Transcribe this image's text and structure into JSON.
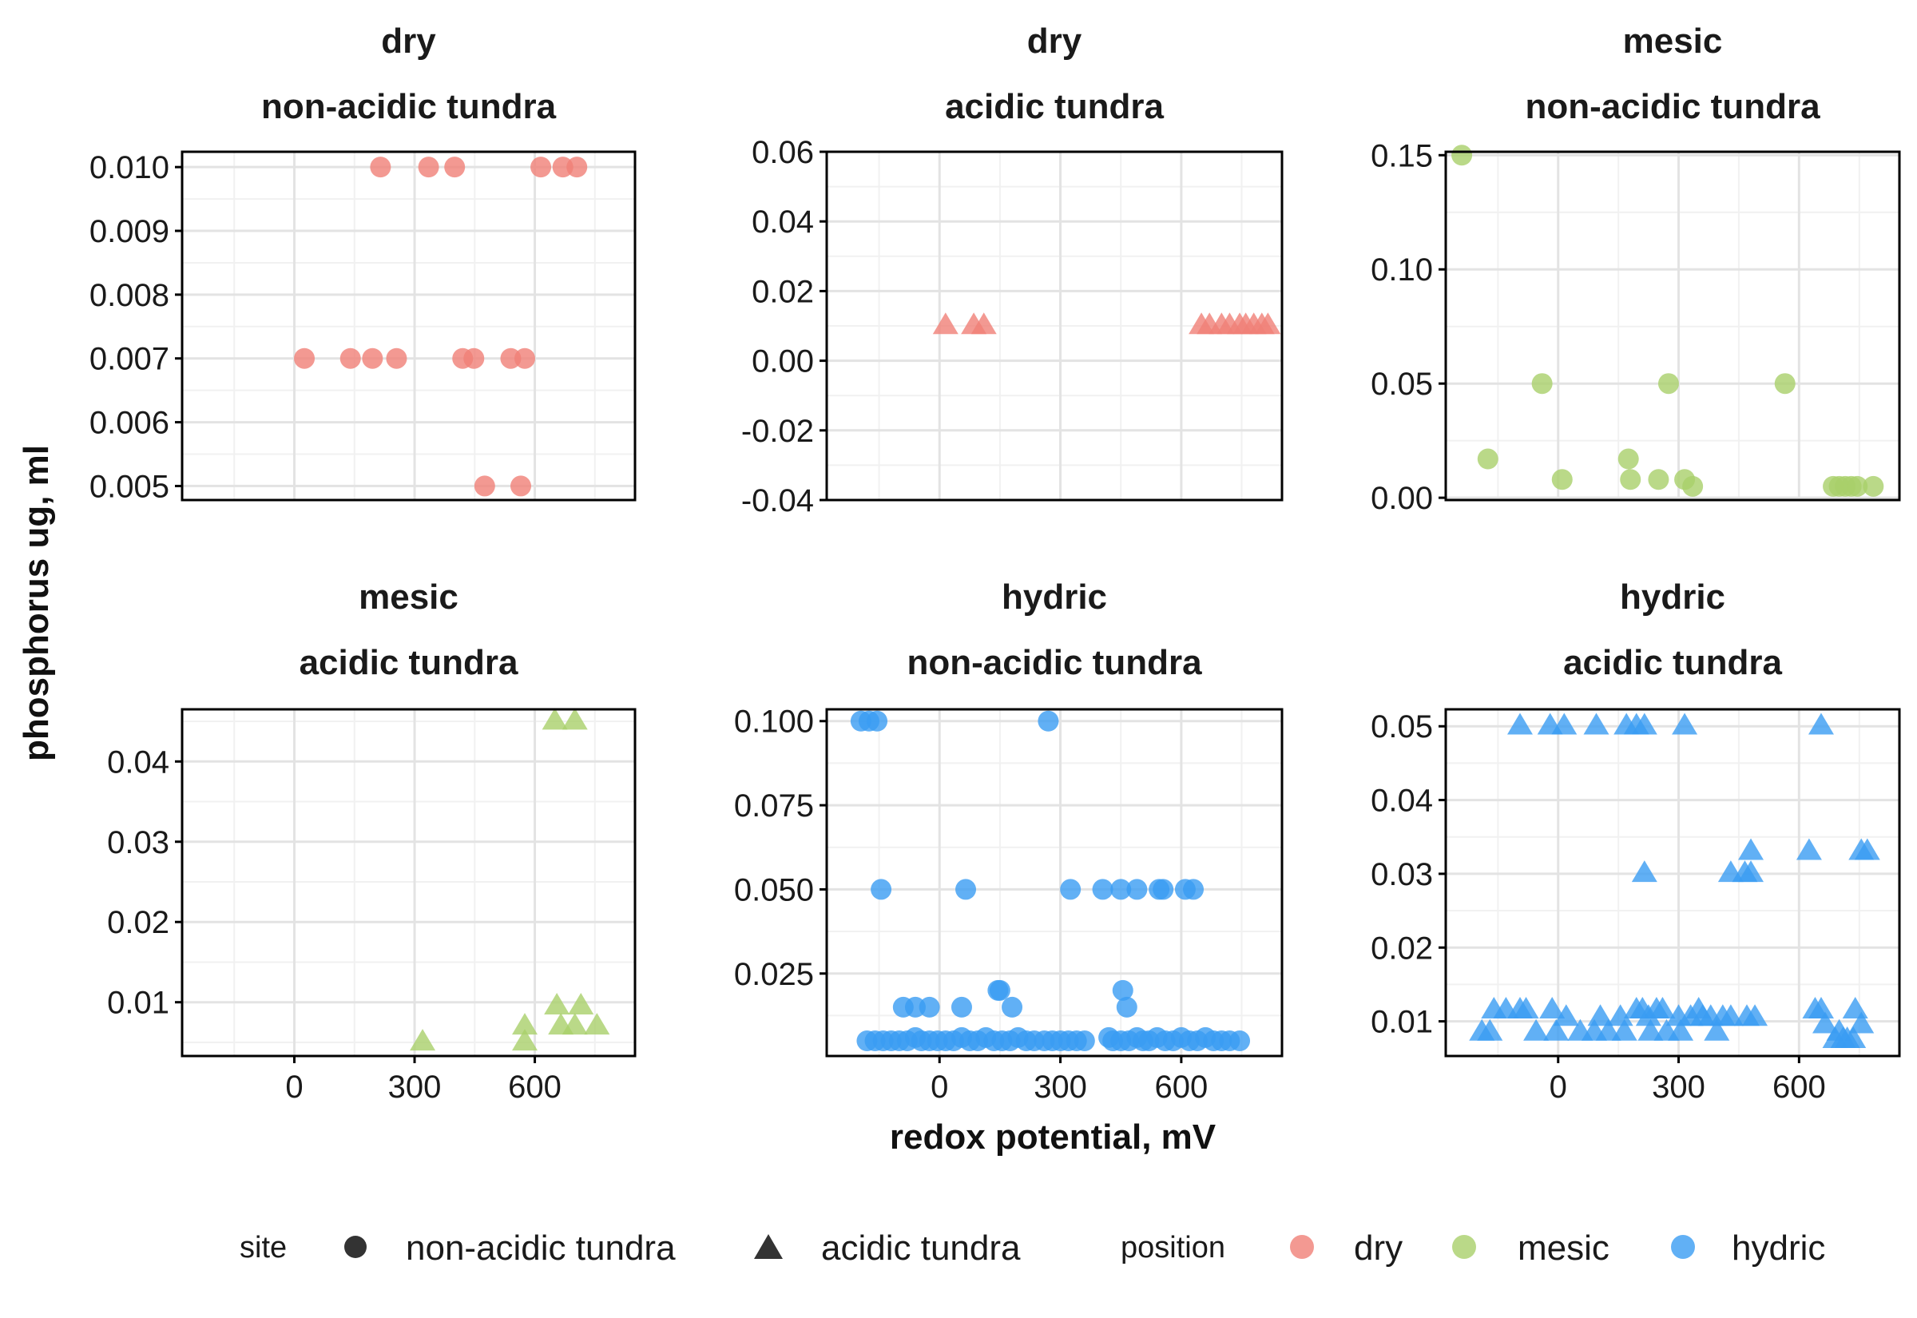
{
  "colors": {
    "dry": "#F07F77",
    "mesic": "#A9D06A",
    "hydric": "#3A9CF2",
    "legend_shape": "#333333"
  },
  "axes": {
    "xlabel": "redox potential, mV",
    "ylabel": "phosphorus ug, ml"
  },
  "legend": {
    "site_title": "site",
    "site_items": [
      {
        "label": "non-acidic tundra",
        "shape": "circle"
      },
      {
        "label": "acidic tundra",
        "shape": "triangle"
      }
    ],
    "position_title": "position",
    "position_items": [
      {
        "label": "dry",
        "color": "dry"
      },
      {
        "label": "mesic",
        "color": "mesic"
      },
      {
        "label": "hydric",
        "color": "hydric"
      }
    ]
  },
  "chart_data": [
    {
      "type": "scatter",
      "strip_top": "dry",
      "strip_bottom": "non-acidic tundra",
      "shape": "circle",
      "color": "dry",
      "xlim": [
        -280,
        850
      ],
      "x_ticks": [],
      "x_tick_labels": [],
      "ylim": [
        0.00478,
        0.01024
      ],
      "y_ticks": [
        0.005,
        0.006,
        0.007,
        0.008,
        0.009,
        0.01
      ],
      "y_tick_labels": [
        "0.005",
        "0.006",
        "0.007",
        "0.008",
        "0.009",
        "0.010"
      ],
      "points": [
        [
          215,
          0.01
        ],
        [
          335,
          0.01
        ],
        [
          400,
          0.01
        ],
        [
          615,
          0.01
        ],
        [
          670,
          0.01
        ],
        [
          705,
          0.01
        ],
        [
          25,
          0.007
        ],
        [
          140,
          0.007
        ],
        [
          195,
          0.007
        ],
        [
          255,
          0.007
        ],
        [
          420,
          0.007
        ],
        [
          448,
          0.007
        ],
        [
          540,
          0.007
        ],
        [
          575,
          0.007
        ],
        [
          475,
          0.005
        ],
        [
          565,
          0.005
        ]
      ]
    },
    {
      "type": "scatter",
      "strip_top": "dry",
      "strip_bottom": "acidic tundra",
      "shape": "triangle",
      "color": "dry",
      "xlim": [
        -280,
        850
      ],
      "x_ticks": [],
      "x_tick_labels": [],
      "ylim": [
        -0.04,
        0.06
      ],
      "y_ticks": [
        -0.04,
        -0.02,
        0.0,
        0.02,
        0.04,
        0.06
      ],
      "y_tick_labels": [
        "-0.04",
        "-0.02",
        "0.00",
        "0.02",
        "0.04",
        "0.06"
      ],
      "points": [
        [
          15,
          0.01
        ],
        [
          85,
          0.01
        ],
        [
          110,
          0.01
        ],
        [
          650,
          0.01
        ],
        [
          670,
          0.01
        ],
        [
          700,
          0.01
        ],
        [
          720,
          0.01
        ],
        [
          745,
          0.01
        ],
        [
          760,
          0.01
        ],
        [
          780,
          0.01
        ],
        [
          800,
          0.01
        ],
        [
          815,
          0.01
        ]
      ]
    },
    {
      "type": "scatter",
      "strip_top": "mesic",
      "strip_bottom": "non-acidic tundra",
      "shape": "circle",
      "color": "mesic",
      "xlim": [
        -280,
        850
      ],
      "x_ticks": [],
      "x_tick_labels": [],
      "ylim": [
        -0.001,
        0.1515
      ],
      "y_ticks": [
        0.0,
        0.05,
        0.1,
        0.15
      ],
      "y_tick_labels": [
        "0.00",
        "0.05",
        "0.10",
        "0.15"
      ],
      "points": [
        [
          -240,
          0.15
        ],
        [
          -175,
          0.017
        ],
        [
          -40,
          0.05
        ],
        [
          10,
          0.008
        ],
        [
          175,
          0.017
        ],
        [
          180,
          0.008
        ],
        [
          250,
          0.008
        ],
        [
          275,
          0.05
        ],
        [
          315,
          0.008
        ],
        [
          335,
          0.005
        ],
        [
          565,
          0.05
        ],
        [
          685,
          0.005
        ],
        [
          700,
          0.005
        ],
        [
          715,
          0.005
        ],
        [
          730,
          0.005
        ],
        [
          745,
          0.005
        ],
        [
          785,
          0.005
        ]
      ]
    },
    {
      "type": "scatter",
      "strip_top": "mesic",
      "strip_bottom": "acidic tundra",
      "shape": "triangle",
      "color": "mesic",
      "xlim": [
        -280,
        850
      ],
      "x_ticks": [
        0,
        300,
        600
      ],
      "x_tick_labels": [
        "0",
        "300",
        "600"
      ],
      "ylim": [
        0.0033,
        0.0465
      ],
      "y_ticks": [
        0.01,
        0.02,
        0.03,
        0.04
      ],
      "y_tick_labels": [
        "0.01",
        "0.02",
        "0.03",
        "0.04"
      ],
      "points": [
        [
          650,
          0.045
        ],
        [
          700,
          0.045
        ],
        [
          320,
          0.005
        ],
        [
          575,
          0.007
        ],
        [
          575,
          0.005
        ],
        [
          655,
          0.0095
        ],
        [
          665,
          0.007
        ],
        [
          700,
          0.007
        ],
        [
          715,
          0.0095
        ],
        [
          755,
          0.007
        ]
      ]
    },
    {
      "type": "scatter",
      "strip_top": "hydric",
      "strip_bottom": "non-acidic tundra",
      "shape": "circle",
      "color": "hydric",
      "xlim": [
        -280,
        850
      ],
      "x_ticks": [
        0,
        300,
        600
      ],
      "x_tick_labels": [
        "0",
        "300",
        "600"
      ],
      "ylim": [
        0.0005,
        0.1035
      ],
      "y_ticks": [
        0.025,
        0.05,
        0.075,
        0.1
      ],
      "y_tick_labels": [
        "0.025",
        "0.050",
        "0.075",
        "0.100"
      ],
      "points": [
        [
          -195,
          0.1
        ],
        [
          -175,
          0.1
        ],
        [
          -155,
          0.1
        ],
        [
          270,
          0.1
        ],
        [
          -145,
          0.05
        ],
        [
          65,
          0.05
        ],
        [
          325,
          0.05
        ],
        [
          405,
          0.05
        ],
        [
          450,
          0.05
        ],
        [
          490,
          0.05
        ],
        [
          545,
          0.05
        ],
        [
          555,
          0.05
        ],
        [
          610,
          0.05
        ],
        [
          630,
          0.05
        ],
        [
          -90,
          0.015
        ],
        [
          -60,
          0.015
        ],
        [
          -25,
          0.015
        ],
        [
          55,
          0.015
        ],
        [
          145,
          0.02
        ],
        [
          150,
          0.02
        ],
        [
          180,
          0.015
        ],
        [
          455,
          0.02
        ],
        [
          465,
          0.015
        ],
        [
          -180,
          0.005
        ],
        [
          -160,
          0.005
        ],
        [
          -140,
          0.005
        ],
        [
          -120,
          0.005
        ],
        [
          -100,
          0.005
        ],
        [
          -80,
          0.005
        ],
        [
          -60,
          0.006
        ],
        [
          -45,
          0.005
        ],
        [
          -25,
          0.005
        ],
        [
          -5,
          0.005
        ],
        [
          15,
          0.005
        ],
        [
          35,
          0.005
        ],
        [
          55,
          0.006
        ],
        [
          75,
          0.005
        ],
        [
          95,
          0.005
        ],
        [
          115,
          0.006
        ],
        [
          135,
          0.005
        ],
        [
          155,
          0.005
        ],
        [
          175,
          0.005
        ],
        [
          195,
          0.006
        ],
        [
          215,
          0.005
        ],
        [
          235,
          0.005
        ],
        [
          260,
          0.005
        ],
        [
          280,
          0.005
        ],
        [
          300,
          0.005
        ],
        [
          320,
          0.005
        ],
        [
          340,
          0.005
        ],
        [
          360,
          0.005
        ],
        [
          420,
          0.006
        ],
        [
          430,
          0.005
        ],
        [
          450,
          0.005
        ],
        [
          470,
          0.005
        ],
        [
          490,
          0.006
        ],
        [
          505,
          0.005
        ],
        [
          520,
          0.005
        ],
        [
          540,
          0.006
        ],
        [
          560,
          0.005
        ],
        [
          580,
          0.005
        ],
        [
          600,
          0.006
        ],
        [
          620,
          0.005
        ],
        [
          640,
          0.005
        ],
        [
          660,
          0.006
        ],
        [
          680,
          0.005
        ],
        [
          700,
          0.005
        ],
        [
          720,
          0.005
        ],
        [
          745,
          0.005
        ]
      ]
    },
    {
      "type": "scatter",
      "strip_top": "hydric",
      "strip_bottom": "acidic tundra",
      "shape": "triangle",
      "color": "hydric",
      "xlim": [
        -280,
        850
      ],
      "x_ticks": [
        0,
        300,
        600
      ],
      "x_tick_labels": [
        "0",
        "300",
        "600"
      ],
      "ylim": [
        0.0053,
        0.0523
      ],
      "y_ticks": [
        0.01,
        0.02,
        0.03,
        0.04,
        0.05
      ],
      "y_tick_labels": [
        "0.01",
        "0.02",
        "0.03",
        "0.04",
        "0.05"
      ],
      "points": [
        [
          -95,
          0.05
        ],
        [
          -20,
          0.05
        ],
        [
          15,
          0.05
        ],
        [
          95,
          0.05
        ],
        [
          170,
          0.05
        ],
        [
          195,
          0.05
        ],
        [
          215,
          0.05
        ],
        [
          315,
          0.05
        ],
        [
          655,
          0.05
        ],
        [
          625,
          0.033
        ],
        [
          755,
          0.033
        ],
        [
          770,
          0.033
        ],
        [
          480,
          0.033
        ],
        [
          430,
          0.03
        ],
        [
          465,
          0.03
        ],
        [
          480,
          0.03
        ],
        [
          215,
          0.03
        ],
        [
          -190,
          0.0085
        ],
        [
          -170,
          0.0085
        ],
        [
          -160,
          0.0115
        ],
        [
          -130,
          0.0115
        ],
        [
          -95,
          0.0115
        ],
        [
          -80,
          0.0115
        ],
        [
          -55,
          0.0085
        ],
        [
          -15,
          0.0115
        ],
        [
          -5,
          0.0085
        ],
        [
          20,
          0.0105
        ],
        [
          55,
          0.0085
        ],
        [
          90,
          0.0085
        ],
        [
          105,
          0.0105
        ],
        [
          125,
          0.0085
        ],
        [
          155,
          0.0105
        ],
        [
          165,
          0.0085
        ],
        [
          195,
          0.0115
        ],
        [
          210,
          0.0115
        ],
        [
          225,
          0.0105
        ],
        [
          230,
          0.0085
        ],
        [
          245,
          0.0115
        ],
        [
          260,
          0.0115
        ],
        [
          270,
          0.0085
        ],
        [
          300,
          0.0105
        ],
        [
          305,
          0.0085
        ],
        [
          330,
          0.0105
        ],
        [
          350,
          0.0115
        ],
        [
          360,
          0.0105
        ],
        [
          380,
          0.0105
        ],
        [
          395,
          0.0085
        ],
        [
          410,
          0.0105
        ],
        [
          430,
          0.0105
        ],
        [
          470,
          0.0105
        ],
        [
          490,
          0.0105
        ],
        [
          640,
          0.0115
        ],
        [
          655,
          0.0115
        ],
        [
          665,
          0.0095
        ],
        [
          690,
          0.0075
        ],
        [
          700,
          0.0085
        ],
        [
          710,
          0.0075
        ],
        [
          720,
          0.0075
        ],
        [
          735,
          0.0075
        ],
        [
          740,
          0.0115
        ],
        [
          755,
          0.0095
        ]
      ]
    }
  ]
}
